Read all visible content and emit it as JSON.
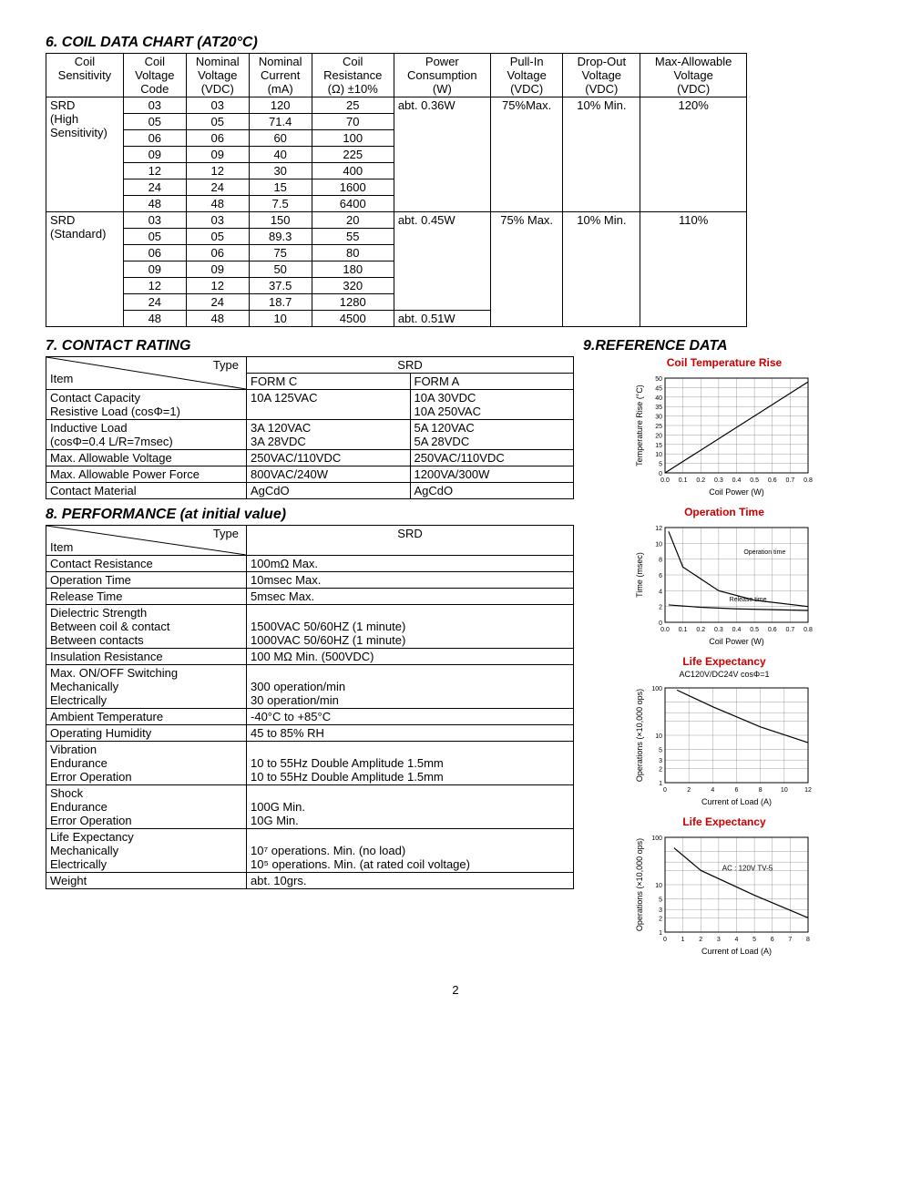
{
  "section6": {
    "title": "6. COIL DATA CHART (AT20°C)",
    "columns": [
      "Coil Sensitivity",
      "Coil Voltage Code",
      "Nominal Voltage (VDC)",
      "Nominal Current (mA)",
      "Coil Resistance (Ω) ±10%",
      "Power Consumption (W)",
      "Pull-In Voltage (VDC)",
      "Drop-Out Voltage (VDC)",
      "Max-Allowable Voltage (VDC)"
    ],
    "groups": [
      {
        "name": "SRD (High Sensitivity)",
        "power": "abt. 0.36W",
        "pullin": "75%Max.",
        "dropout": "10% Min.",
        "maxv": "120%",
        "rows": [
          [
            "03",
            "03",
            "120",
            "25"
          ],
          [
            "05",
            "05",
            "71.4",
            "70"
          ],
          [
            "06",
            "06",
            "60",
            "100"
          ],
          [
            "09",
            "09",
            "40",
            "225"
          ],
          [
            "12",
            "12",
            "30",
            "400"
          ],
          [
            "24",
            "24",
            "15",
            "1600"
          ],
          [
            "48",
            "48",
            "7.5",
            "6400"
          ]
        ]
      },
      {
        "name": "SRD (Standard)",
        "power": "abt. 0.45W",
        "pullin": "75% Max.",
        "dropout": "10% Min.",
        "maxv": "110%",
        "rows": [
          [
            "03",
            "03",
            "150",
            "20"
          ],
          [
            "05",
            "05",
            "89.3",
            "55"
          ],
          [
            "06",
            "06",
            "75",
            "80"
          ],
          [
            "09",
            "09",
            "50",
            "180"
          ],
          [
            "12",
            "12",
            "37.5",
            "320"
          ],
          [
            "24",
            "24",
            "18.7",
            "1280"
          ],
          [
            "48",
            "48",
            "10",
            "4500"
          ]
        ],
        "lastPower": "abt. 0.51W"
      }
    ]
  },
  "section7": {
    "title": "7. CONTACT RATING",
    "typeLabel": "Type",
    "itemLabel": "Item",
    "srd": "SRD",
    "formC": "FORM C",
    "formA": "FORM A",
    "rows": [
      {
        "label": "Contact Capacity\nResistive Load (cosΦ=1)",
        "c": "10A 125VAC",
        "a": "10A 30VDC\n10A 250VAC"
      },
      {
        "label": "   Inductive Load\n(cosΦ=0.4 L/R=7msec)",
        "c": "3A 120VAC\n3A 28VDC",
        "a": "5A 120VAC\n5A 28VDC"
      },
      {
        "label": "Max. Allowable Voltage",
        "c": "250VAC/110VDC",
        "a": "250VAC/110VDC"
      },
      {
        "label": "Max. Allowable Power Force",
        "c": "800VAC/240W",
        "a": "1200VA/300W"
      },
      {
        "label": "Contact Material",
        "c": "AgCdO",
        "a": "AgCdO"
      }
    ]
  },
  "section8": {
    "title": "8. PERFORMANCE (at initial value)",
    "typeLabel": "Type",
    "itemLabel": "Item",
    "srd": "SRD",
    "rows": [
      {
        "l": "Contact Resistance",
        "v": "100mΩ Max."
      },
      {
        "l": "Operation Time",
        "v": "10msec Max."
      },
      {
        "l": "Release Time",
        "v": "5msec Max."
      },
      {
        "l": "Dielectric Strength\n   Between coil & contact\n   Between contacts",
        "v": "\n1500VAC 50/60HZ (1 minute)\n1000VAC 50/60HZ (1 minute)"
      },
      {
        "l": "Insulation Resistance",
        "v": "100 MΩ Min. (500VDC)"
      },
      {
        "l": "Max. ON/OFF Switching\nMechanically\nElectrically",
        "v": "\n300 operation/min\n30 operation/min"
      },
      {
        "l": "Ambient Temperature",
        "v": "-40°C to +85°C"
      },
      {
        "l": "Operating Humidity",
        "v": "45 to 85% RH"
      },
      {
        "l": "Vibration\nEndurance\nError Operation",
        "v": "\n10 to 55Hz Double Amplitude 1.5mm\n10 to 55Hz Double Amplitude 1.5mm"
      },
      {
        "l": "Shock\nEndurance\nError Operation",
        "v": "\n100G Min.\n10G Min."
      },
      {
        "l": "Life Expectancy\nMechanically\n  Electrically",
        "v": "\n10⁷ operations. Min. (no load)\n10⁵ operations. Min. (at rated coil voltage)"
      },
      {
        "l": "Weight",
        "v": "abt. 10grs."
      }
    ]
  },
  "section9": {
    "title": "9.REFERENCE DATA",
    "charts": [
      {
        "title": "Coil Temperature Rise",
        "ylabel": "Temperature Rise (°C)",
        "xlabel": "Coil Power (W)",
        "xmax": 0.8,
        "ymax": 50,
        "xticks": [
          "0.0",
          "0.1",
          "0.2",
          "0.3",
          "0.4",
          "0.5",
          "0.6",
          "0.7",
          "0.8"
        ],
        "yticks": [
          "0",
          "5",
          "10",
          "15",
          "20",
          "25",
          "30",
          "35",
          "40",
          "45",
          "50"
        ],
        "type": "line",
        "data": [
          [
            0,
            0
          ],
          [
            0.8,
            48
          ]
        ]
      },
      {
        "title": "Operation Time",
        "ylabel": "Time (msec)",
        "xlabel": "Coil Power (W)",
        "xmax": 0.8,
        "ymax": 12,
        "xticks": [
          "0.0",
          "0.1",
          "0.2",
          "0.3",
          "0.4",
          "0.5",
          "0.6",
          "0.7",
          "0.8"
        ],
        "yticks": [
          "0",
          "2",
          "4",
          "6",
          "8",
          "10",
          "12"
        ],
        "type": "dual",
        "data1": [
          [
            0.02,
            11.5
          ],
          [
            0.1,
            7
          ],
          [
            0.3,
            4
          ],
          [
            0.5,
            2.8
          ],
          [
            0.8,
            2
          ]
        ],
        "data2": [
          [
            0.02,
            2.2
          ],
          [
            0.2,
            1.9
          ],
          [
            0.4,
            1.7
          ],
          [
            0.6,
            1.6
          ],
          [
            0.8,
            1.5
          ]
        ],
        "lab1": "Operation time",
        "lab2": "Release time"
      },
      {
        "title": "Life Expectancy",
        "subtitle": "AC120V/DC24V cosΦ=1",
        "ylabel": "Operations (×10,000 ops)",
        "xlabel": "Current of Load (A)",
        "xmax": 12,
        "ymax": 100,
        "xticks": [
          "0",
          "2",
          "4",
          "6",
          "8",
          "10",
          "12"
        ],
        "type": "log",
        "data": [
          [
            1,
            90
          ],
          [
            4,
            40
          ],
          [
            8,
            15
          ],
          [
            12,
            7
          ]
        ]
      },
      {
        "title": "Life Expectancy",
        "ylabel": "Operations (×10,000 ops)",
        "xlabel": "Current of Load (A)",
        "xmax": 8,
        "ymax": 100,
        "xticks": [
          "0",
          "1",
          "2",
          "3",
          "4",
          "5",
          "6",
          "7",
          "8"
        ],
        "type": "log",
        "data": [
          [
            0.5,
            60
          ],
          [
            2,
            20
          ],
          [
            5,
            6
          ],
          [
            8,
            2
          ]
        ],
        "annot": "AC : 120V TV-5"
      }
    ]
  },
  "pageNo": "2"
}
